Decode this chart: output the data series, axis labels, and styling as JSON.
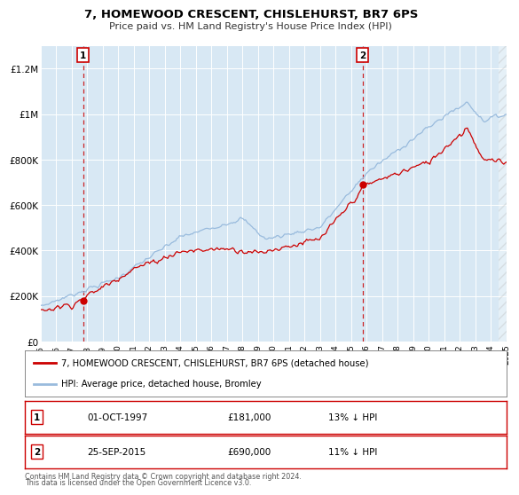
{
  "title": "7, HOMEWOOD CRESCENT, CHISLEHURST, BR7 6PS",
  "subtitle": "Price paid vs. HM Land Registry's House Price Index (HPI)",
  "bg_color": "#d8e8f4",
  "red_color": "#cc0000",
  "blue_color": "#99bbdd",
  "sale1_year": 1997.75,
  "sale1_value": 181000,
  "sale1_label": "1",
  "sale1_date_str": "01-OCT-1997",
  "sale1_pct": "13% ↓ HPI",
  "sale2_year": 2015.75,
  "sale2_value": 690000,
  "sale2_label": "2",
  "sale2_date_str": "25-SEP-2015",
  "sale2_pct": "11% ↓ HPI",
  "ylim": [
    0,
    1300000
  ],
  "yticks": [
    0,
    200000,
    400000,
    600000,
    800000,
    1000000,
    1200000
  ],
  "ytick_labels": [
    "£0",
    "£200K",
    "£400K",
    "£600K",
    "£800K",
    "£1M",
    "£1.2M"
  ],
  "xlim": [
    1995,
    2025
  ],
  "legend_label_red": "7, HOMEWOOD CRESCENT, CHISLEHURST, BR7 6PS (detached house)",
  "legend_label_blue": "HPI: Average price, detached house, Bromley",
  "footer1": "Contains HM Land Registry data © Crown copyright and database right 2024.",
  "footer2": "This data is licensed under the Open Government Licence v3.0."
}
